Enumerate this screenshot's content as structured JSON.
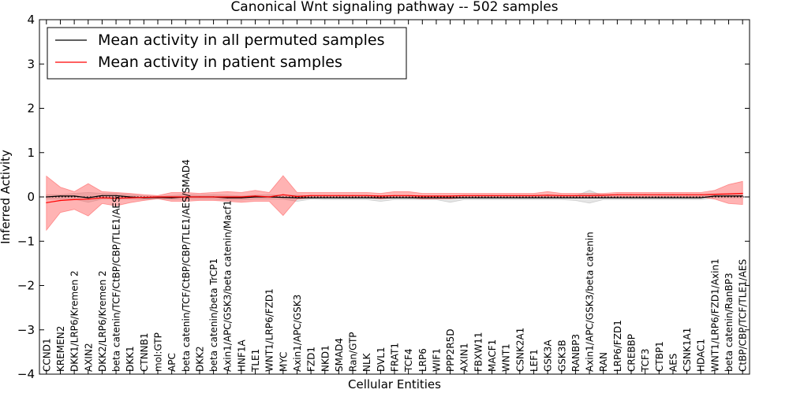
{
  "chart_data": {
    "type": "line",
    "title": "Canonical Wnt signaling pathway -- 502 samples",
    "xlabel": "Cellular Entities",
    "ylabel": "Inferred Activity",
    "ylim": [
      -4,
      4
    ],
    "yticks": [
      -4,
      -3,
      -2,
      -1,
      0,
      1,
      2,
      3,
      4
    ],
    "ytick_labels": [
      "−4",
      "−3",
      "−2",
      "−1",
      "0",
      "1",
      "2",
      "3",
      "4"
    ],
    "grid": false,
    "legend_position": "top-left",
    "categories": [
      "CCND1",
      "KREMEN2",
      "DKK1/LRP6/Kremen 2",
      "AXIN2",
      "DKK2/LRP6/Kremen 2",
      "beta catenin/TCF/CtBP/CBP/TLE1/AES",
      "DKK1",
      "CTNNB1",
      "mol:GTP",
      "APC",
      "beta catenin/TCF/CtBP/CBP/TLE1/AES/SMAD4",
      "DKK2",
      "beta catenin/beta TrCP1",
      "Axin1/APC/GSK3/beta catenin/Macf1",
      "HNF1A",
      "TLE1",
      "WNT1/LRP6/FZD1",
      "MYC",
      "Axin1/APC/GSK3",
      "FZD1",
      "NKD1",
      "SMAD4",
      "Ran/GTP",
      "NLK",
      "DVL1",
      "FRAT1",
      "TCF4",
      "LRP6",
      "WIF1",
      "PPP2R5D",
      "AXIN1",
      "FBXW11",
      "MACF1",
      "WNT1",
      "CSNK2A1",
      "LEF1",
      "GSK3A",
      "GSK3B",
      "RANBP3",
      "Axin1/APC/GSK3/beta catenin",
      "RAN",
      "LRP6/FZD1",
      "CREBBP",
      "TCF3",
      "CTBP1",
      "AES",
      "CSNK1A1",
      "HDAC1",
      "WNT1/LRP6/FZD1/Axin1",
      "beta catenin/RanBP3",
      "CtBP/CBP/TCF/TLE1/AES"
    ],
    "series": [
      {
        "name": "Mean activity in all permuted samples",
        "color": "#000000",
        "band_color": "#a9a9a9",
        "values": [
          0.0,
          0.02,
          0.02,
          -0.02,
          0.03,
          0.03,
          0.0,
          -0.02,
          -0.01,
          -0.02,
          0.0,
          0.0,
          0.0,
          -0.02,
          -0.02,
          0.0,
          0.0,
          -0.01,
          -0.02,
          -0.02,
          -0.02,
          -0.02,
          -0.02,
          -0.02,
          -0.02,
          -0.02,
          -0.02,
          -0.02,
          -0.02,
          -0.02,
          -0.02,
          -0.02,
          -0.02,
          -0.02,
          -0.02,
          -0.02,
          -0.02,
          -0.02,
          -0.02,
          -0.02,
          -0.02,
          -0.02,
          -0.02,
          -0.02,
          -0.02,
          -0.02,
          -0.02,
          -0.02,
          0.02,
          0.02,
          0.02
        ],
        "upper": [
          0.05,
          0.05,
          0.08,
          0.1,
          0.08,
          0.08,
          0.05,
          0.02,
          0.01,
          0.03,
          0.05,
          0.04,
          0.05,
          0.04,
          0.02,
          0.04,
          0.05,
          0.04,
          0.04,
          0.02,
          0.02,
          0.02,
          0.02,
          0.02,
          0.02,
          0.02,
          0.02,
          0.02,
          0.02,
          0.02,
          0.02,
          0.02,
          0.02,
          0.02,
          0.02,
          0.02,
          0.02,
          0.02,
          0.02,
          0.15,
          0.02,
          0.02,
          0.02,
          0.02,
          0.02,
          0.02,
          0.02,
          0.02,
          0.05,
          0.05,
          0.05
        ],
        "lower": [
          -0.05,
          -0.05,
          -0.05,
          -0.12,
          -0.05,
          -0.05,
          -0.05,
          -0.06,
          -0.04,
          -0.06,
          -0.05,
          -0.05,
          -0.05,
          -0.07,
          -0.07,
          -0.05,
          -0.05,
          -0.05,
          -0.1,
          -0.05,
          -0.06,
          -0.06,
          -0.06,
          -0.06,
          -0.1,
          -0.06,
          -0.06,
          -0.06,
          -0.06,
          -0.12,
          -0.06,
          -0.06,
          -0.06,
          -0.06,
          -0.06,
          -0.06,
          -0.06,
          -0.06,
          -0.08,
          -0.14,
          -0.06,
          -0.06,
          -0.06,
          -0.06,
          -0.06,
          -0.06,
          -0.06,
          -0.06,
          -0.02,
          -0.02,
          -0.02
        ]
      },
      {
        "name": "Mean activity in patient samples",
        "color": "#ff0000",
        "band_color": "#ff4040",
        "values": [
          -0.13,
          -0.08,
          -0.06,
          -0.05,
          -0.02,
          -0.03,
          -0.02,
          -0.01,
          0.0,
          0.0,
          0.0,
          0.0,
          0.0,
          0.0,
          0.0,
          0.02,
          0.0,
          0.05,
          0.01,
          0.03,
          0.03,
          0.03,
          0.03,
          0.03,
          0.02,
          0.03,
          0.03,
          0.02,
          0.02,
          0.02,
          0.03,
          0.03,
          0.03,
          0.03,
          0.03,
          0.03,
          0.04,
          0.03,
          0.03,
          0.03,
          0.04,
          0.05,
          0.05,
          0.05,
          0.05,
          0.05,
          0.05,
          0.05,
          0.06,
          0.07,
          0.08
        ],
        "upper": [
          0.47,
          0.22,
          0.12,
          0.3,
          0.12,
          0.1,
          0.08,
          0.05,
          0.03,
          0.1,
          0.1,
          0.08,
          0.1,
          0.12,
          0.1,
          0.15,
          0.1,
          0.48,
          0.1,
          0.1,
          0.1,
          0.1,
          0.1,
          0.1,
          0.08,
          0.12,
          0.12,
          0.08,
          0.08,
          0.08,
          0.08,
          0.08,
          0.08,
          0.08,
          0.08,
          0.08,
          0.12,
          0.08,
          0.08,
          0.08,
          0.08,
          0.1,
          0.1,
          0.1,
          0.1,
          0.1,
          0.1,
          0.1,
          0.15,
          0.28,
          0.35
        ],
        "lower": [
          -0.75,
          -0.35,
          -0.28,
          -0.43,
          -0.15,
          -0.2,
          -0.13,
          -0.08,
          -0.04,
          -0.1,
          -0.1,
          -0.08,
          -0.08,
          -0.1,
          -0.12,
          -0.1,
          -0.1,
          -0.42,
          -0.05,
          -0.02,
          -0.02,
          -0.02,
          -0.02,
          -0.02,
          -0.04,
          -0.02,
          -0.02,
          -0.04,
          -0.04,
          -0.04,
          -0.02,
          -0.02,
          -0.02,
          -0.02,
          -0.02,
          -0.02,
          -0.02,
          -0.02,
          -0.02,
          -0.02,
          -0.02,
          0.0,
          0.0,
          0.0,
          0.0,
          0.0,
          0.0,
          0.0,
          -0.05,
          -0.15,
          -0.17
        ]
      }
    ],
    "reference_line": {
      "y": 0,
      "style": "dotted",
      "color": "#000000"
    }
  }
}
